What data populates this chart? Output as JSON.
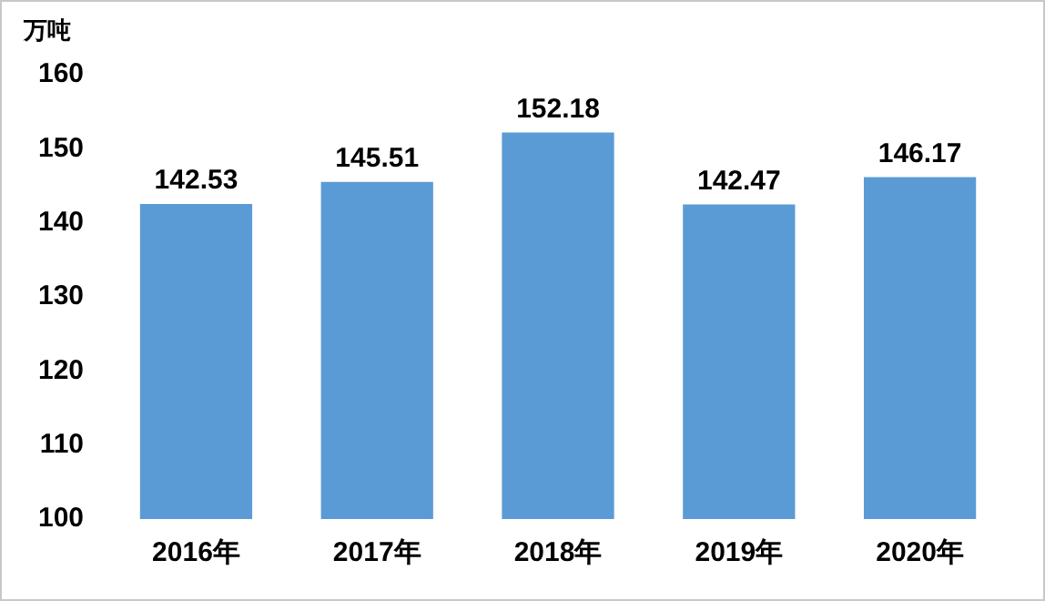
{
  "chart_data": {
    "type": "bar",
    "ylabel": "万吨",
    "categories": [
      "2016年",
      "2017年",
      "2018年",
      "2019年",
      "2020年"
    ],
    "values": [
      142.53,
      145.51,
      152.18,
      142.47,
      146.17
    ],
    "color": "#5b9bd5",
    "ylim": [
      100,
      160
    ],
    "yticks": [
      100,
      110,
      120,
      130,
      140,
      150,
      160
    ],
    "grid": false,
    "legend": false,
    "data_labels": true
  }
}
